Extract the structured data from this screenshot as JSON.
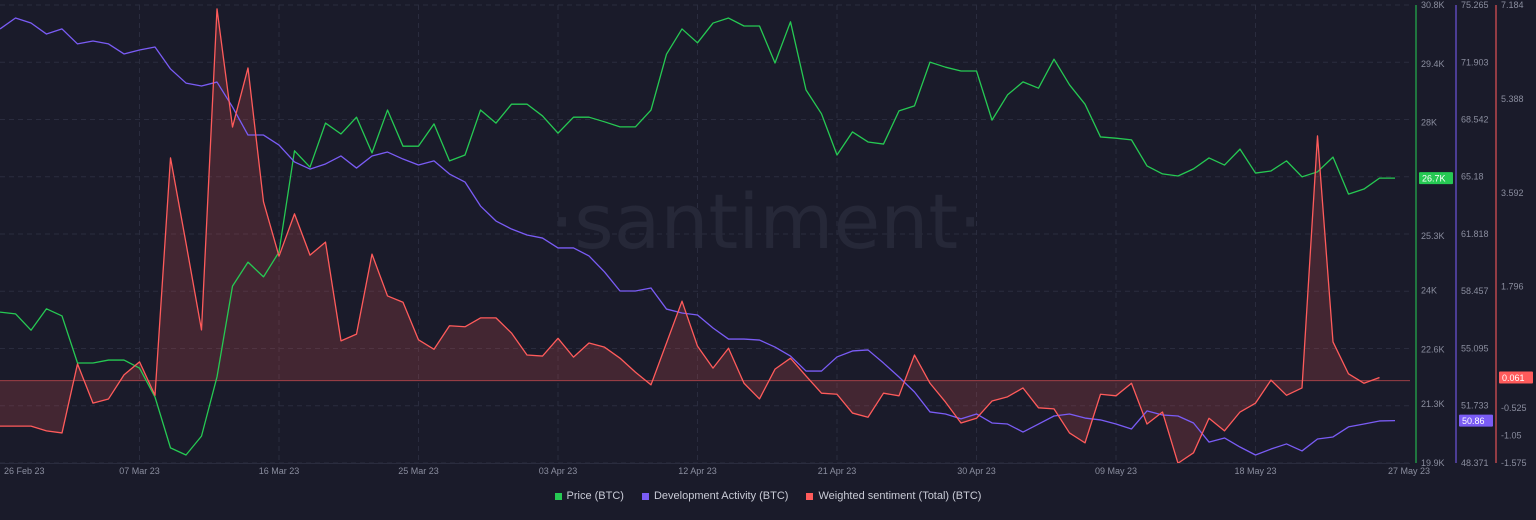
{
  "watermark": "·santiment·",
  "x_start_date": "26 Feb 23",
  "chart_data": {
    "type": "line",
    "title": "",
    "x_tick_labels": [
      "26 Feb 23",
      "07 Mar 23",
      "16 Mar 23",
      "25 Mar 23",
      "03 Apr 23",
      "12 Apr 23",
      "21 Apr 23",
      "30 Apr 23",
      "09 May 23",
      "18 May 23",
      "27 May 23"
    ],
    "x_tick_days": [
      0,
      9,
      18,
      27,
      36,
      45,
      54,
      63,
      72,
      81,
      90
    ],
    "x_range_days": [
      0,
      91
    ],
    "grid": true,
    "legend_position": "bottom-center",
    "series": [
      {
        "name": "Price (BTC)",
        "color": "#26c953",
        "axis": "price",
        "last_label": "26.7K",
        "values": [
          23.49,
          23.45,
          23.06,
          23.57,
          23.4,
          22.28,
          22.28,
          22.35,
          22.35,
          22.16,
          21.47,
          20.26,
          20.09,
          20.54,
          21.95,
          24.11,
          24.68,
          24.33,
          24.92,
          27.33,
          26.94,
          27.99,
          27.73,
          28.13,
          27.28,
          28.3,
          27.44,
          27.44,
          27.97,
          27.09,
          27.23,
          28.3,
          27.99,
          28.44,
          28.44,
          28.16,
          27.75,
          28.13,
          28.13,
          28.02,
          27.9,
          27.9,
          28.3,
          29.63,
          30.23,
          29.9,
          30.37,
          30.49,
          30.3,
          30.3,
          29.42,
          30.4,
          28.78,
          28.21,
          27.23,
          27.78,
          27.54,
          27.49,
          28.28,
          28.4,
          29.44,
          29.32,
          29.23,
          29.23,
          28.06,
          28.66,
          28.97,
          28.82,
          29.51,
          28.9,
          28.44,
          27.66,
          27.63,
          27.59,
          26.97,
          26.78,
          26.73,
          26.9,
          27.16,
          26.99,
          27.37,
          26.8,
          26.85,
          27.09,
          26.71,
          26.83,
          27.18,
          26.3,
          26.42,
          26.68,
          26.68
        ]
      },
      {
        "name": "Development Activity (BTC)",
        "color": "#7a5cf5",
        "axis": "dev",
        "last_label": "50.86",
        "values": [
          73.86,
          74.5,
          74.21,
          73.56,
          73.86,
          72.98,
          73.15,
          72.98,
          72.39,
          72.62,
          72.8,
          71.51,
          70.68,
          70.51,
          70.74,
          69.28,
          67.63,
          67.63,
          67.04,
          66.05,
          65.63,
          65.93,
          66.4,
          65.69,
          66.4,
          66.63,
          66.22,
          65.87,
          66.11,
          65.34,
          64.87,
          63.46,
          62.58,
          62.11,
          61.76,
          61.58,
          61.0,
          61.0,
          60.53,
          59.59,
          58.47,
          58.47,
          58.65,
          57.41,
          57.18,
          57.06,
          56.3,
          55.65,
          55.65,
          55.59,
          55.18,
          54.65,
          53.77,
          53.77,
          54.6,
          54.95,
          55.01,
          54.24,
          53.42,
          52.54,
          51.37,
          51.25,
          50.96,
          51.25,
          50.72,
          50.66,
          50.19,
          50.66,
          51.13,
          51.25,
          51.01,
          50.9,
          50.66,
          50.37,
          51.43,
          51.19,
          51.13,
          50.72,
          49.6,
          49.84,
          49.31,
          48.84,
          49.19,
          49.49,
          49.08,
          49.78,
          49.9,
          50.49,
          50.66,
          50.84,
          50.86
        ]
      },
      {
        "name": "Weighted sentiment (Total) (BTC)",
        "color": "#ff5b5b",
        "axis": "sent",
        "last_label": "0.061",
        "area_to_zero": true,
        "values": [
          -0.87,
          -0.87,
          -0.87,
          -0.96,
          -1.0,
          0.32,
          -0.43,
          -0.35,
          0.11,
          0.36,
          -0.28,
          4.26,
          2.63,
          0.97,
          7.11,
          4.85,
          5.98,
          3.42,
          2.38,
          3.19,
          2.4,
          2.65,
          0.76,
          0.89,
          2.42,
          1.62,
          1.5,
          0.78,
          0.6,
          1.05,
          1.03,
          1.2,
          1.2,
          0.91,
          0.49,
          0.47,
          0.81,
          0.45,
          0.72,
          0.64,
          0.43,
          0.16,
          -0.08,
          0.72,
          1.52,
          0.66,
          0.24,
          0.62,
          -0.05,
          -0.35,
          0.22,
          0.43,
          0.09,
          -0.24,
          -0.26,
          -0.62,
          -0.7,
          -0.24,
          -0.29,
          0.49,
          -0.05,
          -0.41,
          -0.81,
          -0.72,
          -0.39,
          -0.31,
          -0.14,
          -0.52,
          -0.54,
          -1.0,
          -1.19,
          -0.26,
          -0.29,
          -0.05,
          -0.83,
          -0.6,
          -1.58,
          -1.38,
          -0.72,
          -0.96,
          -0.6,
          -0.43,
          0.01,
          -0.28,
          -0.14,
          4.68,
          0.74,
          0.13,
          -0.05,
          0.061
        ]
      }
    ],
    "axes": {
      "price": {
        "range": [
          19.9,
          30.8
        ],
        "color": "#26c953",
        "tick_labels": [
          "30.8K",
          "29.4K",
          "28K",
          "25.3K",
          "24K",
          "22.6K",
          "21.3K",
          "19.9K"
        ],
        "tick_values": [
          30.8,
          29.4,
          28.0,
          25.3,
          24.0,
          22.6,
          21.3,
          19.9
        ]
      },
      "dev": {
        "range": [
          48.371,
          75.265
        ],
        "color": "#7a5cf5",
        "tick_labels": [
          "75.265",
          "71.903",
          "68.542",
          "65.18",
          "61.818",
          "58.457",
          "55.095",
          "51.733",
          "48.371"
        ],
        "tick_values": [
          75.265,
          71.903,
          68.542,
          65.18,
          61.818,
          58.457,
          55.095,
          51.733,
          48.371
        ]
      },
      "sent": {
        "range": [
          -1.575,
          7.184
        ],
        "color": "#ff5b5b",
        "tick_labels": [
          "7.184",
          "5.388",
          "3.592",
          "1.796",
          "-0.525",
          "-1.05",
          "-1.575"
        ],
        "tick_values": [
          7.184,
          5.388,
          3.592,
          1.796,
          -0.525,
          -1.05,
          -1.575
        ]
      }
    }
  },
  "legend": [
    "Price (BTC)",
    "Development Activity (BTC)",
    "Weighted sentiment (Total) (BTC)"
  ]
}
